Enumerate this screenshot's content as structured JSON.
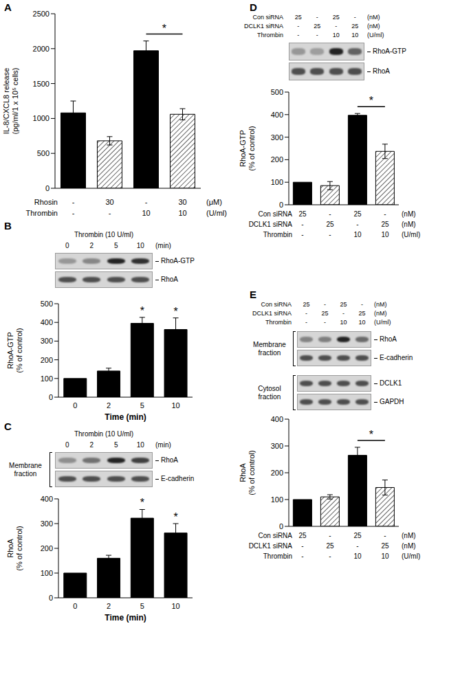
{
  "chart_data": [
    {
      "panel": "A",
      "type": "bar",
      "categories": [
        null,
        null,
        null,
        null
      ],
      "values": [
        1080,
        680,
        1970,
        1060
      ],
      "errors": [
        170,
        60,
        140,
        80
      ],
      "colors": [
        "#000000",
        "#ffffff",
        "#000000",
        "#ffffff"
      ],
      "ylabel": [
        "IL-8/CXCL8 release",
        "(pg/ml/1 x 10⁵ cells)"
      ],
      "ylim": [
        0,
        2500
      ],
      "yticks": [
        0,
        500,
        1000,
        1500,
        2000,
        2500
      ],
      "tick_labels": "y",
      "annotations": [
        {
          "text": "*",
          "bars": [
            2,
            3
          ]
        }
      ],
      "condition_rows": [
        {
          "label": "Rhosin",
          "cells": [
            "-",
            "30",
            "-",
            "30"
          ],
          "unit": "(μM)"
        },
        {
          "label": "Thrombin",
          "cells": [
            "-",
            "-",
            "10",
            "10"
          ],
          "unit": "(U/ml)"
        }
      ]
    },
    {
      "panel": "B",
      "type": "bar",
      "categories": [
        "0",
        "2",
        "5",
        "10"
      ],
      "values": [
        100,
        140,
        395,
        362
      ],
      "errors": [
        0,
        15,
        32,
        62
      ],
      "colors": [
        "#000000",
        "#000000",
        "#000000",
        "#000000"
      ],
      "ylabel": [
        "RhoA-GTP",
        "(% of control)"
      ],
      "xlabel": "Time (min)",
      "ylim": [
        0,
        500
      ],
      "yticks": [
        0,
        100,
        200,
        300,
        400,
        500
      ],
      "annotations": [
        {
          "text": "*",
          "bars": [
            2
          ]
        },
        {
          "text": "*",
          "bars": [
            3
          ]
        }
      ],
      "blot": {
        "header": "Thrombin (10 U/ml)",
        "lane_unit": "(min)",
        "groups": [
          {
            "bands": [
              "RhoA-GTP",
              "RhoA"
            ]
          }
        ]
      }
    },
    {
      "panel": "C",
      "type": "bar",
      "categories": [
        "0",
        "2",
        "5",
        "10"
      ],
      "values": [
        100,
        160,
        322,
        262
      ],
      "errors": [
        0,
        12,
        35,
        38
      ],
      "colors": [
        "#000000",
        "#000000",
        "#000000",
        "#000000"
      ],
      "ylabel": [
        "RhoA",
        "(% of control)"
      ],
      "xlabel": "Time (min)",
      "ylim": [
        0,
        400
      ],
      "yticks": [
        0,
        100,
        200,
        300,
        400
      ],
      "annotations": [
        {
          "text": "*",
          "bars": [
            2
          ]
        },
        {
          "text": "*",
          "bars": [
            3
          ]
        }
      ],
      "blot": {
        "header": "Thrombin (10 U/ml)",
        "lane_unit": "(min)",
        "groups": [
          {
            "label": "Membrane fraction",
            "bands": [
              "RhoA",
              "E-cadherin"
            ]
          }
        ]
      }
    },
    {
      "panel": "D",
      "type": "bar",
      "categories": [
        null,
        null,
        null,
        null
      ],
      "values": [
        100,
        85,
        397,
        237
      ],
      "errors": [
        0,
        18,
        8,
        32
      ],
      "colors": [
        "#000000",
        "#ffffff",
        "#000000",
        "#ffffff"
      ],
      "ylabel": [
        "RhoA-GTP",
        "(% of control)"
      ],
      "ylim": [
        0,
        500
      ],
      "yticks": [
        0,
        100,
        200,
        300,
        400,
        500
      ],
      "tick_labels": "y",
      "annotations": [
        {
          "text": "*",
          "bars": [
            2,
            3
          ]
        }
      ],
      "condition_rows": [
        {
          "label": "Con siRNA",
          "cells": [
            "25",
            "-",
            "25",
            "-"
          ],
          "unit": "(nM)"
        },
        {
          "label": "DCLK1 siRNA",
          "cells": [
            "-",
            "25",
            "-",
            "25"
          ],
          "unit": "(nM)"
        },
        {
          "label": "Thrombin",
          "cells": [
            "-",
            "-",
            "10",
            "10"
          ],
          "unit": "(U/ml)"
        }
      ],
      "blot": {
        "groups": [
          {
            "bands": [
              "RhoA-GTP",
              "RhoA"
            ]
          }
        ]
      }
    },
    {
      "panel": "E",
      "type": "bar",
      "categories": [
        null,
        null,
        null,
        null
      ],
      "values": [
        100,
        110,
        265,
        145
      ],
      "errors": [
        0,
        8,
        30,
        28
      ],
      "colors": [
        "#000000",
        "#ffffff",
        "#000000",
        "#ffffff"
      ],
      "ylabel": [
        "RhoA",
        "(% of control)"
      ],
      "ylim": [
        0,
        400
      ],
      "yticks": [
        0,
        100,
        200,
        300,
        400
      ],
      "tick_labels": "y",
      "annotations": [
        {
          "text": "*",
          "bars": [
            2,
            3
          ]
        }
      ],
      "condition_rows": [
        {
          "label": "Con siRNA",
          "cells": [
            "25",
            "-",
            "25",
            "-"
          ],
          "unit": "(nM)"
        },
        {
          "label": "DCLK1 siRNA",
          "cells": [
            "-",
            "25",
            "-",
            "25"
          ],
          "unit": "(nM)"
        },
        {
          "label": "Thrombin",
          "cells": [
            "-",
            "-",
            "10",
            "10"
          ],
          "unit": "(U/ml)"
        }
      ],
      "blot": {
        "groups": [
          {
            "label": "Membrane fraction",
            "bands": [
              "RhoA",
              "E-cadherin"
            ]
          },
          {
            "label": "Cytosol fraction",
            "bands": [
              "DCLK1",
              "GAPDH"
            ]
          }
        ]
      }
    }
  ]
}
